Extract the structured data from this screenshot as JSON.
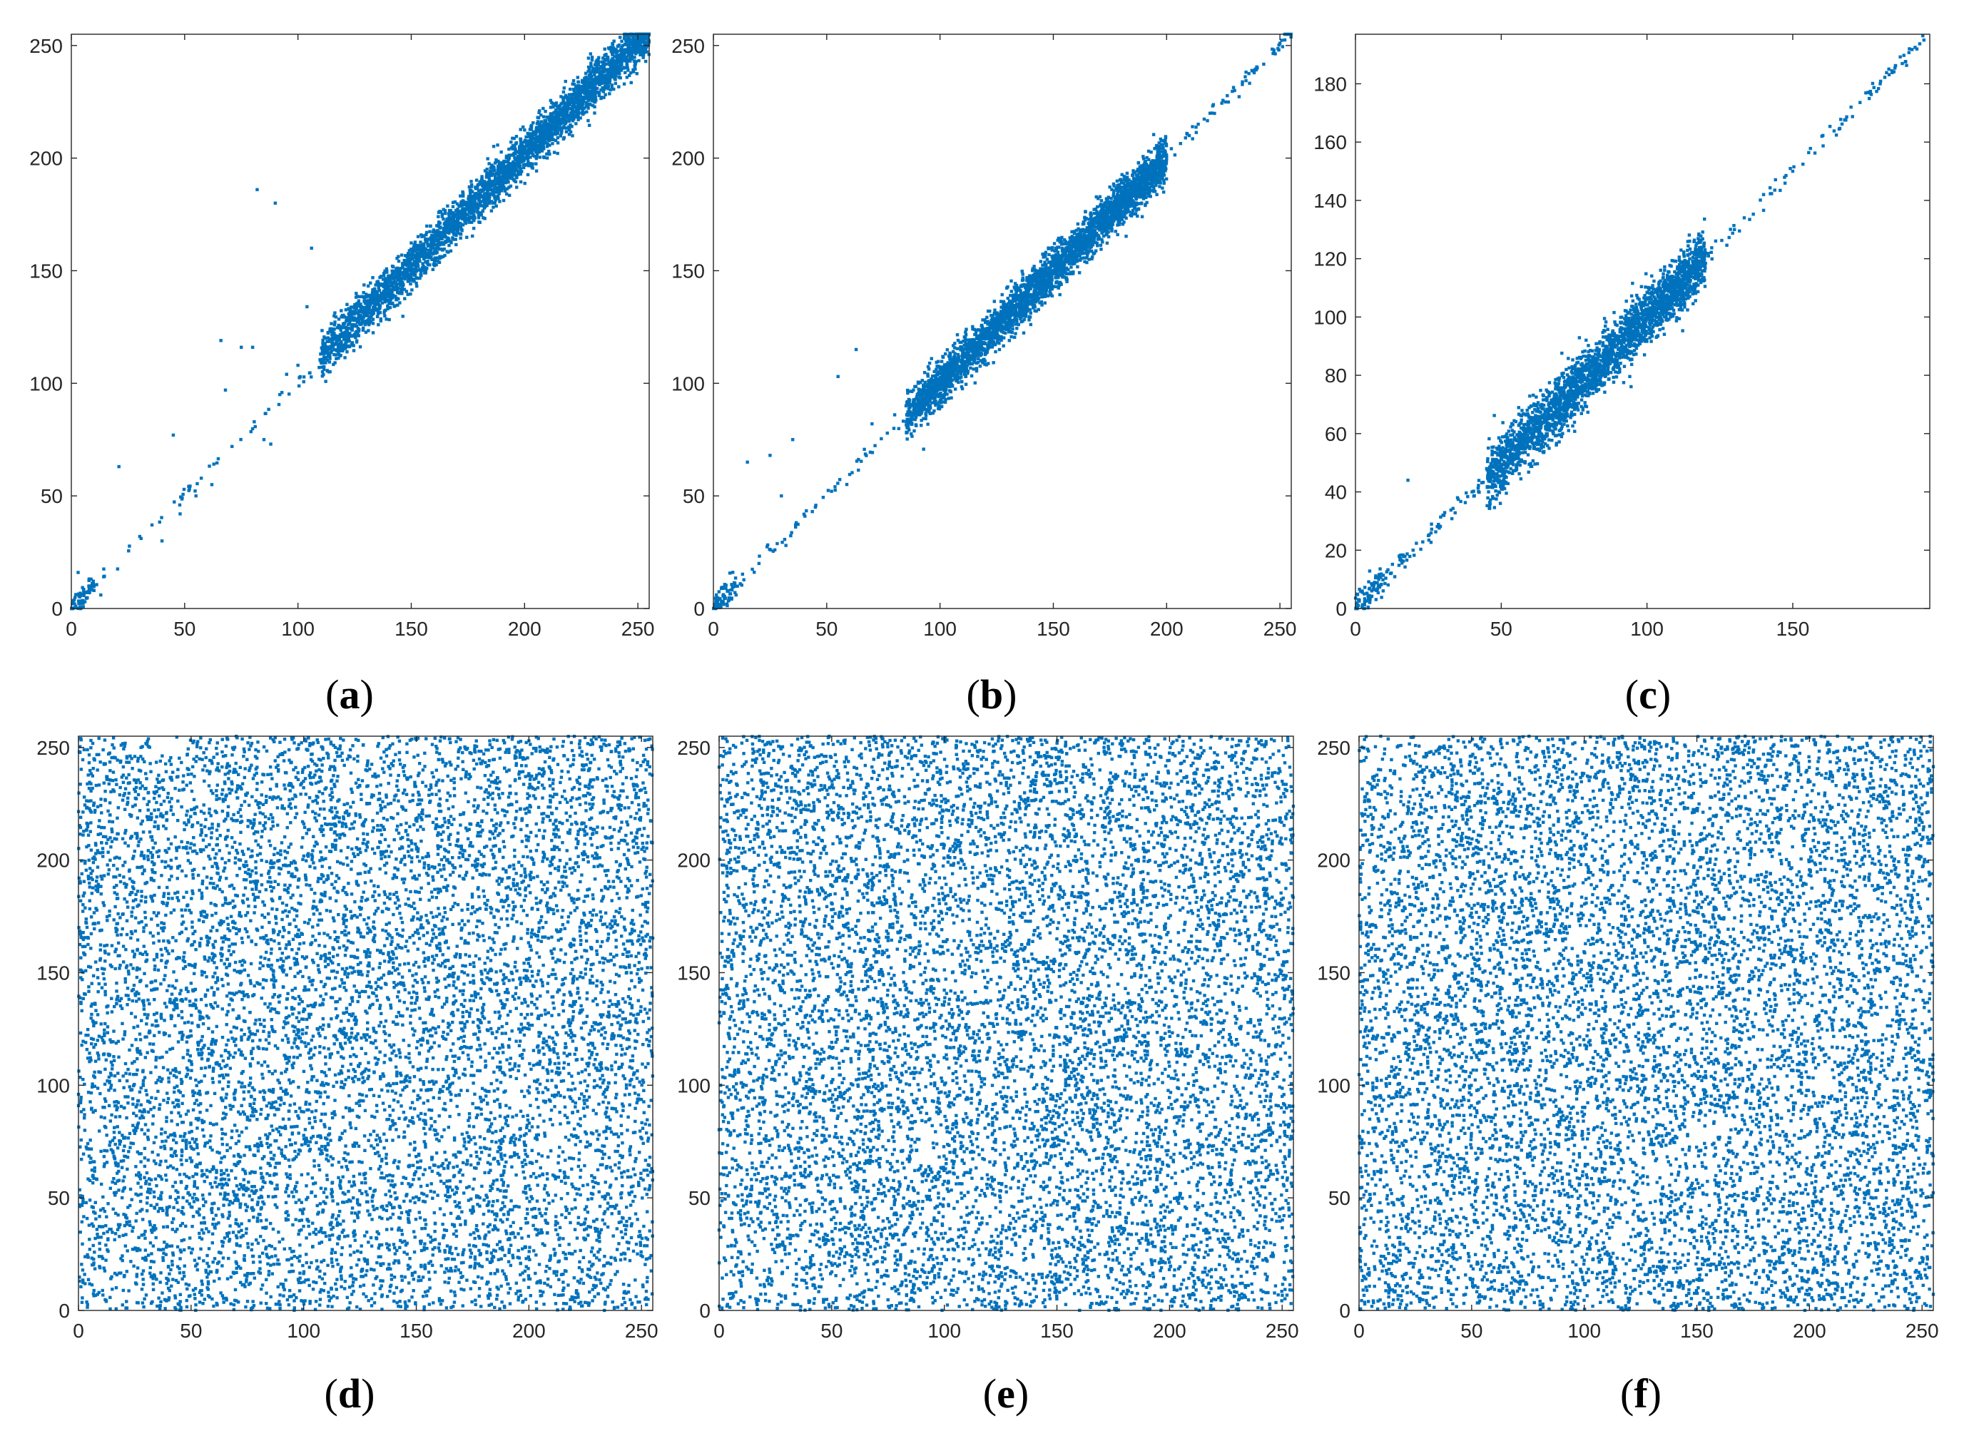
{
  "figure": {
    "panels": [
      {
        "id": "a",
        "caption": "a"
      },
      {
        "id": "b",
        "caption": "b"
      },
      {
        "id": "c",
        "caption": "c"
      },
      {
        "id": "d",
        "caption": "d"
      },
      {
        "id": "e",
        "caption": "e"
      },
      {
        "id": "f",
        "caption": "f"
      }
    ]
  },
  "colors": {
    "points": "#0072BD",
    "axes": "#262626"
  },
  "chart_data": [
    {
      "panel": "a",
      "type": "scatter",
      "title": "",
      "xlabel": "",
      "ylabel": "",
      "xlim": [
        0,
        255
      ],
      "ylim": [
        0,
        255
      ],
      "xticks": [
        0,
        50,
        100,
        150,
        200,
        250
      ],
      "yticks": [
        0,
        50,
        100,
        150,
        200,
        250
      ],
      "grid": false,
      "legend": "none",
      "pattern": "strong positive correlation along y = x, dense cluster from about x=110 to 255",
      "series": [
        {
          "points": [
            [
              2,
              1
            ],
            [
              4,
              6
            ],
            [
              6,
              3
            ],
            [
              8,
              10
            ],
            [
              10,
              8
            ],
            [
              3,
              16
            ],
            [
              13,
              6
            ],
            [
              21,
              63
            ],
            [
              40,
              30
            ],
            [
              45,
              77
            ],
            [
              48,
              42
            ],
            [
              55,
              50
            ],
            [
              62,
              55
            ],
            [
              66,
              119
            ],
            [
              68,
              97
            ],
            [
              75,
              116
            ],
            [
              80,
              116
            ],
            [
              82,
              186
            ],
            [
              85,
              75
            ],
            [
              88,
              73
            ],
            [
              90,
              180
            ],
            [
              92,
              95
            ],
            [
              95,
              104
            ],
            [
              100,
              108
            ],
            [
              104,
              134
            ],
            [
              106,
              160
            ],
            [
              110,
              113
            ],
            [
              112,
              120
            ],
            [
              115,
              118
            ],
            [
              120,
              125
            ],
            [
              125,
              128
            ],
            [
              130,
              133
            ],
            [
              135,
              140
            ],
            [
              140,
              142
            ],
            [
              145,
              150
            ],
            [
              150,
              152
            ],
            [
              155,
              160
            ],
            [
              160,
              163
            ],
            [
              165,
              170
            ],
            [
              170,
              172
            ],
            [
              175,
              178
            ],
            [
              180,
              184
            ],
            [
              185,
              188
            ],
            [
              190,
              190
            ],
            [
              195,
              198
            ],
            [
              200,
              203
            ],
            [
              205,
              206
            ],
            [
              210,
              214
            ],
            [
              215,
              218
            ],
            [
              220,
              222
            ],
            [
              225,
              230
            ],
            [
              230,
              232
            ],
            [
              235,
              240
            ],
            [
              240,
              243
            ],
            [
              245,
              248
            ],
            [
              250,
              252
            ],
            [
              253,
              250
            ]
          ]
        }
      ]
    },
    {
      "panel": "b",
      "type": "scatter",
      "title": "",
      "xlabel": "",
      "ylabel": "",
      "xlim": [
        0,
        255
      ],
      "ylim": [
        0,
        255
      ],
      "xticks": [
        0,
        50,
        100,
        150,
        200,
        250
      ],
      "yticks": [
        0,
        50,
        100,
        150,
        200,
        250
      ],
      "grid": false,
      "legend": "none",
      "pattern": "strong positive correlation along y = x, dense cluster from about x=85 to 200, thin tail up to 255",
      "series": [
        {
          "points": [
            [
              1,
              1
            ],
            [
              3,
              4
            ],
            [
              6,
              2
            ],
            [
              10,
              6
            ],
            [
              15,
              65
            ],
            [
              25,
              68
            ],
            [
              30,
              50
            ],
            [
              32,
              28
            ],
            [
              35,
              75
            ],
            [
              45,
              45
            ],
            [
              55,
              103
            ],
            [
              63,
              115
            ],
            [
              70,
              82
            ],
            [
              80,
              86
            ],
            [
              85,
              90
            ],
            [
              90,
              95
            ],
            [
              95,
              100
            ],
            [
              100,
              106
            ],
            [
              105,
              110
            ],
            [
              110,
              112
            ],
            [
              115,
              118
            ],
            [
              120,
              122
            ],
            [
              125,
              128
            ],
            [
              130,
              133
            ],
            [
              135,
              138
            ],
            [
              140,
              142
            ],
            [
              145,
              148
            ],
            [
              150,
              153
            ],
            [
              155,
              158
            ],
            [
              160,
              162
            ],
            [
              165,
              168
            ],
            [
              170,
              170
            ],
            [
              175,
              178
            ],
            [
              180,
              182
            ],
            [
              185,
              186
            ],
            [
              190,
              192
            ],
            [
              195,
              195
            ],
            [
              200,
              200
            ],
            [
              210,
              210
            ],
            [
              220,
              220
            ],
            [
              230,
              230
            ],
            [
              240,
              240
            ],
            [
              250,
              251
            ],
            [
              253,
              255
            ]
          ]
        }
      ]
    },
    {
      "panel": "c",
      "type": "scatter",
      "title": "",
      "xlabel": "",
      "ylabel": "",
      "xlim": [
        0,
        197
      ],
      "ylim": [
        0,
        197
      ],
      "xticks": [
        0,
        50,
        100,
        150
      ],
      "yticks": [
        0,
        20,
        40,
        60,
        80,
        100,
        120,
        140,
        160,
        180
      ],
      "grid": false,
      "legend": "none",
      "pattern": "strong positive correlation along y = x, dense cluster from about x=45 to 120, thin tail up to about 195",
      "series": [
        {
          "points": [
            [
              1,
              1
            ],
            [
              3,
              5
            ],
            [
              5,
              3
            ],
            [
              8,
              10
            ],
            [
              12,
              12
            ],
            [
              15,
              18
            ],
            [
              18,
              44
            ],
            [
              25,
              25
            ],
            [
              30,
              32
            ],
            [
              35,
              38
            ],
            [
              40,
              40
            ],
            [
              45,
              48
            ],
            [
              50,
              52
            ],
            [
              55,
              58
            ],
            [
              60,
              62
            ],
            [
              65,
              66
            ],
            [
              70,
              72
            ],
            [
              75,
              78
            ],
            [
              80,
              82
            ],
            [
              85,
              86
            ],
            [
              90,
              92
            ],
            [
              95,
              98
            ],
            [
              100,
              102
            ],
            [
              105,
              106
            ],
            [
              110,
              112
            ],
            [
              115,
              116
            ],
            [
              120,
              122
            ],
            [
              130,
              130
            ],
            [
              140,
              142
            ],
            [
              150,
              150
            ],
            [
              160,
              162
            ],
            [
              170,
              172
            ],
            [
              180,
              180
            ],
            [
              190,
              192
            ],
            [
              195,
              195
            ]
          ]
        }
      ]
    },
    {
      "panel": "d",
      "type": "scatter",
      "title": "",
      "xlabel": "",
      "ylabel": "",
      "xlim": [
        0,
        255
      ],
      "ylim": [
        0,
        255
      ],
      "xticks": [
        0,
        50,
        100,
        150,
        200,
        250
      ],
      "yticks": [
        0,
        50,
        100,
        150,
        200,
        250
      ],
      "grid": false,
      "legend": "none",
      "pattern": "points uniformly distributed over the full range, no correlation"
    },
    {
      "panel": "e",
      "type": "scatter",
      "title": "",
      "xlabel": "",
      "ylabel": "",
      "xlim": [
        0,
        255
      ],
      "ylim": [
        0,
        255
      ],
      "xticks": [
        0,
        50,
        100,
        150,
        200,
        250
      ],
      "yticks": [
        0,
        50,
        100,
        150,
        200,
        250
      ],
      "grid": false,
      "legend": "none",
      "pattern": "points uniformly distributed over the full range, no correlation"
    },
    {
      "panel": "f",
      "type": "scatter",
      "title": "",
      "xlabel": "",
      "ylabel": "",
      "xlim": [
        0,
        255
      ],
      "ylim": [
        0,
        255
      ],
      "xticks": [
        0,
        50,
        100,
        150,
        200,
        250
      ],
      "yticks": [
        0,
        50,
        100,
        150,
        200,
        250
      ],
      "grid": false,
      "legend": "none",
      "pattern": "points uniformly distributed over the full range, no correlation"
    }
  ]
}
